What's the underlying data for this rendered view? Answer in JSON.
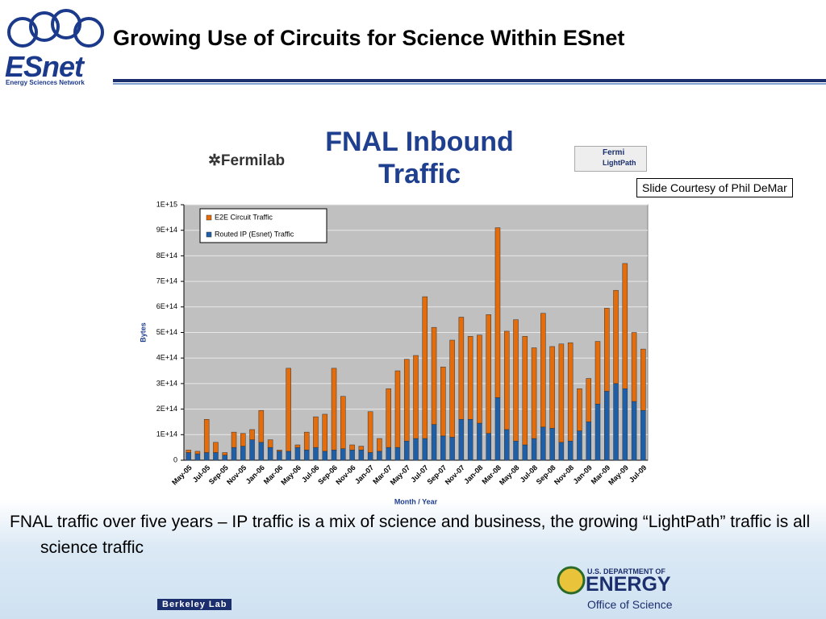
{
  "slide": {
    "title": "Growing Use of Circuits for Science Within ESnet",
    "logo_name": "ESnet",
    "logo_tagline": "Energy Sciences Network",
    "courtesy": "Slide Courtesy of Phil DeMar",
    "caption": "FNAL traffic over five years – IP traffic is a mix of science and business, the growing “LightPath” traffic is all science traffic",
    "fermilab": "Fermilab",
    "lightpath": [
      "Fermi",
      "LightPath"
    ],
    "berkeley": "Berkeley Lab",
    "doe": [
      "U.S. DEPARTMENT OF",
      "ENERGY",
      "Office of Science"
    ]
  },
  "chart_data": {
    "type": "bar",
    "stacked": true,
    "title": "FNAL Inbound Traffic",
    "ylabel": "Bytes",
    "xlabel": "Month / Year",
    "categories": [
      "May-05",
      null,
      "Jul-05",
      null,
      "Sep-05",
      null,
      "Nov-05",
      null,
      "Jan-06",
      null,
      "Mar-06",
      null,
      "May-06",
      null,
      "Jul-06",
      null,
      "Sep-06",
      null,
      "Nov-06",
      null,
      "Jan-07",
      null,
      "Mar-07",
      null,
      "May-07",
      null,
      "Jul-07",
      null,
      "Sep-07",
      null,
      "Nov-07",
      null,
      "Jan-08",
      null,
      "Mar-08",
      null,
      "May-08",
      null,
      "Jul-08",
      null,
      "Sep-08",
      null,
      "Nov-08",
      null,
      "Jan-09",
      null,
      "Mar-09",
      null,
      "May-09",
      null,
      "Jul-09"
    ],
    "series": [
      {
        "name": "E2E Circuit Traffic",
        "color": "#e46c0a",
        "values": [
          10000000000000.0,
          10000000000000.0,
          130000000000000.0,
          40000000000000.0,
          10000000000000.0,
          60000000000000.0,
          50000000000000.0,
          40000000000000.0,
          125000000000000.0,
          30000000000000.0,
          5000000000000.0,
          325000000000000.0,
          10000000000000.0,
          70000000000000.0,
          120000000000000.0,
          145000000000000.0,
          320000000000000.0,
          205000000000000.0,
          20000000000000.0,
          15000000000000.0,
          160000000000000.0,
          50000000000000.0,
          230000000000000.0,
          300000000000000.0,
          320000000000000.0,
          325000000000000.0,
          555000000000000.0,
          380000000000000.0,
          270000000000000.0,
          380000000000000.0,
          400000000000000.0,
          325000000000000.0,
          345000000000000.0,
          465000000000000.0,
          665000000000000.0,
          385000000000000.0,
          475000000000000.0,
          425000000000000.0,
          355000000000000.0,
          445000000000000.0,
          320000000000000.0,
          385000000000000.0,
          385000000000000.0,
          165000000000000.0,
          170000000000000.0,
          245000000000000.0,
          325000000000000.0,
          365000000000000.0,
          490000000000000.0,
          270000000000000.0,
          240000000000000.0
        ]
      },
      {
        "name": "Routed IP (Esnet) Traffic",
        "color": "#1f5fa8",
        "values": [
          30000000000000.0,
          25000000000000.0,
          30000000000000.0,
          30000000000000.0,
          20000000000000.0,
          50000000000000.0,
          55000000000000.0,
          80000000000000.0,
          70000000000000.0,
          50000000000000.0,
          35000000000000.0,
          35000000000000.0,
          50000000000000.0,
          40000000000000.0,
          50000000000000.0,
          35000000000000.0,
          40000000000000.0,
          45000000000000.0,
          40000000000000.0,
          40000000000000.0,
          30000000000000.0,
          35000000000000.0,
          50000000000000.0,
          50000000000000.0,
          75000000000000.0,
          85000000000000.0,
          85000000000000.0,
          140000000000000.0,
          95000000000000.0,
          90000000000000.0,
          160000000000000.0,
          160000000000000.0,
          145000000000000.0,
          105000000000000.0,
          245000000000000.0,
          120000000000000.0,
          75000000000000.0,
          60000000000000.0,
          85000000000000.0,
          130000000000000.0,
          125000000000000.0,
          70000000000000.0,
          75000000000000.0,
          115000000000000.0,
          150000000000000.0,
          220000000000000.0,
          270000000000000.0,
          300000000000000.0,
          280000000000000.0,
          230000000000000.0,
          195000000000000.0
        ]
      }
    ],
    "ylim": [
      0,
      1000000000000000.0
    ],
    "yticks": [
      0,
      {
        "value": 100000000000000.0,
        "label": "1E+14"
      },
      {
        "value": 200000000000000.0,
        "label": "2E+14"
      },
      {
        "value": 300000000000000.0,
        "label": "3E+14"
      },
      {
        "value": 400000000000000.0,
        "label": "4E+14"
      },
      {
        "value": 500000000000000.0,
        "label": "5E+14"
      },
      {
        "value": 600000000000000.0,
        "label": "6E+14"
      },
      {
        "value": 700000000000000.0,
        "label": "7E+14"
      },
      {
        "value": 800000000000000.0,
        "label": "8E+14"
      },
      {
        "value": 900000000000000.0,
        "label": "9E+14"
      },
      {
        "value": 1000000000000000.0,
        "label": "1E+15"
      }
    ],
    "grid": true,
    "legend": "upper left"
  }
}
